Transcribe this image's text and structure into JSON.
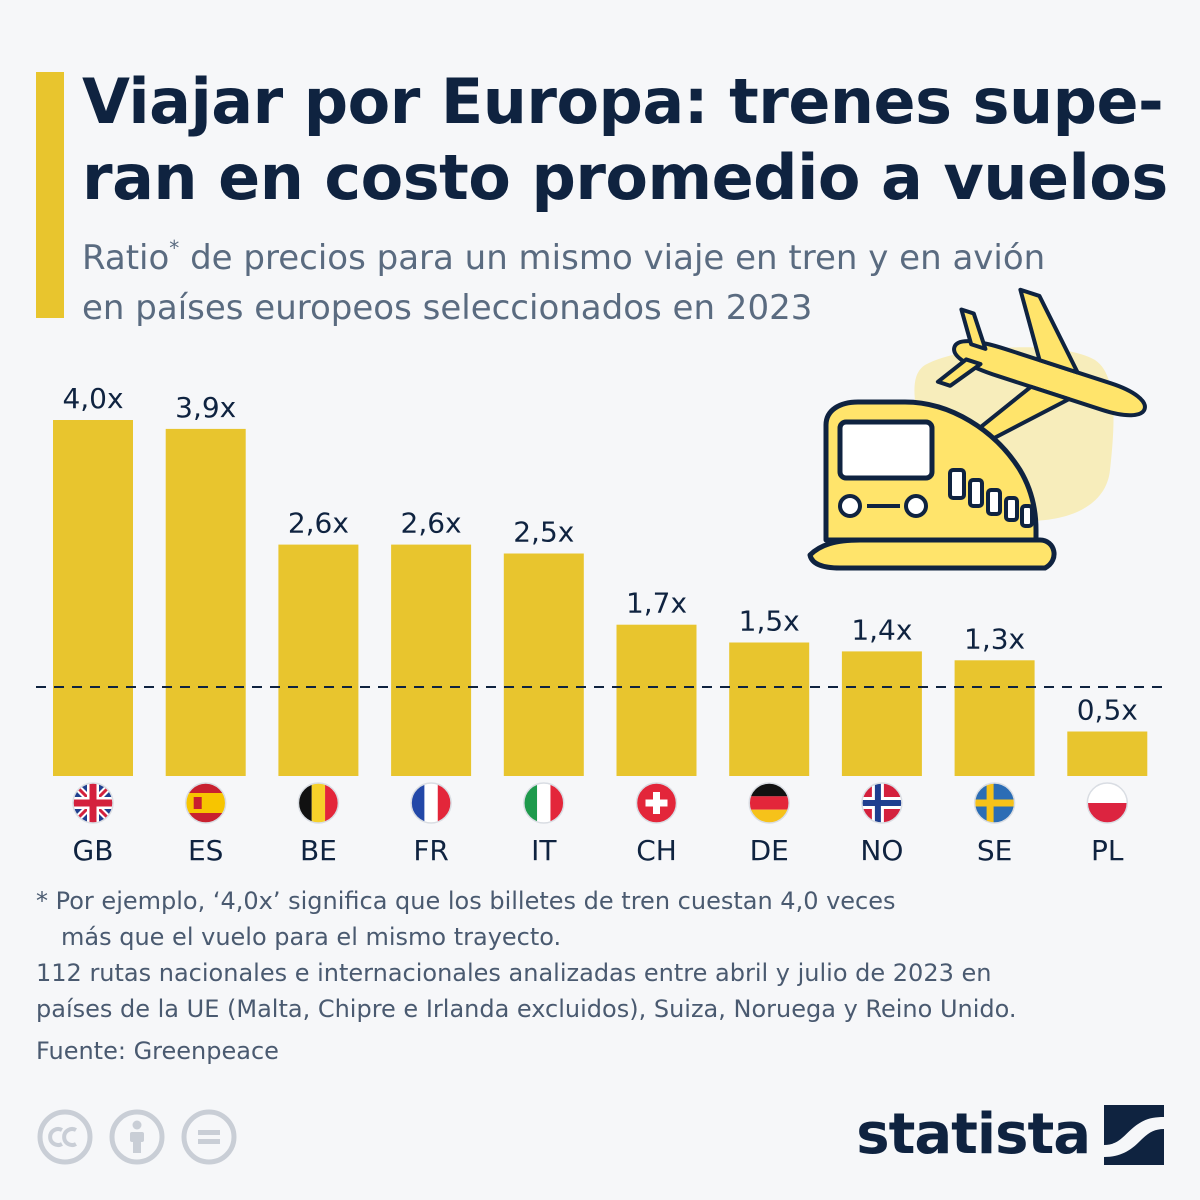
{
  "header": {
    "title_line1": "Viajar por Europa: trenes supe-",
    "title_line2": "ran en costo promedio a vuelos",
    "subtitle_line1_start": "Ratio",
    "subtitle_asterisk": "*",
    "subtitle_line1_end": " de precios para un mismo viaje en tren y en avión",
    "subtitle_line2": "en países europeos seleccionados en 2023"
  },
  "chart_data": {
    "type": "bar",
    "categories": [
      "GB",
      "ES",
      "BE",
      "FR",
      "IT",
      "CH",
      "DE",
      "NO",
      "SE",
      "PL"
    ],
    "values": [
      4.0,
      3.9,
      2.6,
      2.6,
      2.5,
      1.7,
      1.5,
      1.4,
      1.3,
      0.5
    ],
    "value_labels": [
      "4,0x",
      "3,9x",
      "2,6x",
      "2,6x",
      "2,5x",
      "1,7x",
      "1,5x",
      "1,4x",
      "1,3x",
      "0,5x"
    ],
    "reference_line": 1.0,
    "reference_line_style": "dashed",
    "ylim": [
      0,
      4.0
    ],
    "grid": false,
    "bar_color": "#e8c52e",
    "flags": [
      "flag-uk-icon",
      "flag-spain-icon",
      "flag-belgium-icon",
      "flag-france-icon",
      "flag-italy-icon",
      "flag-switzerland-icon",
      "flag-germany-icon",
      "flag-norway-icon",
      "flag-sweden-icon",
      "flag-poland-icon"
    ]
  },
  "illustration": {
    "train": "train-icon",
    "plane": "airplane-icon"
  },
  "notes": {
    "note_line1": "* Por ejemplo, ‘4,0x’ significa que los billetes de tren cuestan 4,0 veces",
    "note_line2": "más que el vuelo para el mismo trayecto.",
    "note_line3": "112 rutas nacionales e internacionales analizadas entre abril y julio de 2023 en",
    "note_line4": "países de la UE (Malta, Chipre e Irlanda excluidos), Suiza, Noruega y Reino Unido.",
    "source": "Fuente: Greenpeace"
  },
  "footer": {
    "license_icons": [
      "cc-icon",
      "attribution-icon",
      "no-derivatives-icon"
    ],
    "brand": "statista"
  },
  "colors": {
    "title": "#0f2340",
    "subtitle": "#5a6b80",
    "accent": "#e8c52e",
    "background": "#f6f7f9",
    "illustration_bg": "#f7edbb"
  }
}
